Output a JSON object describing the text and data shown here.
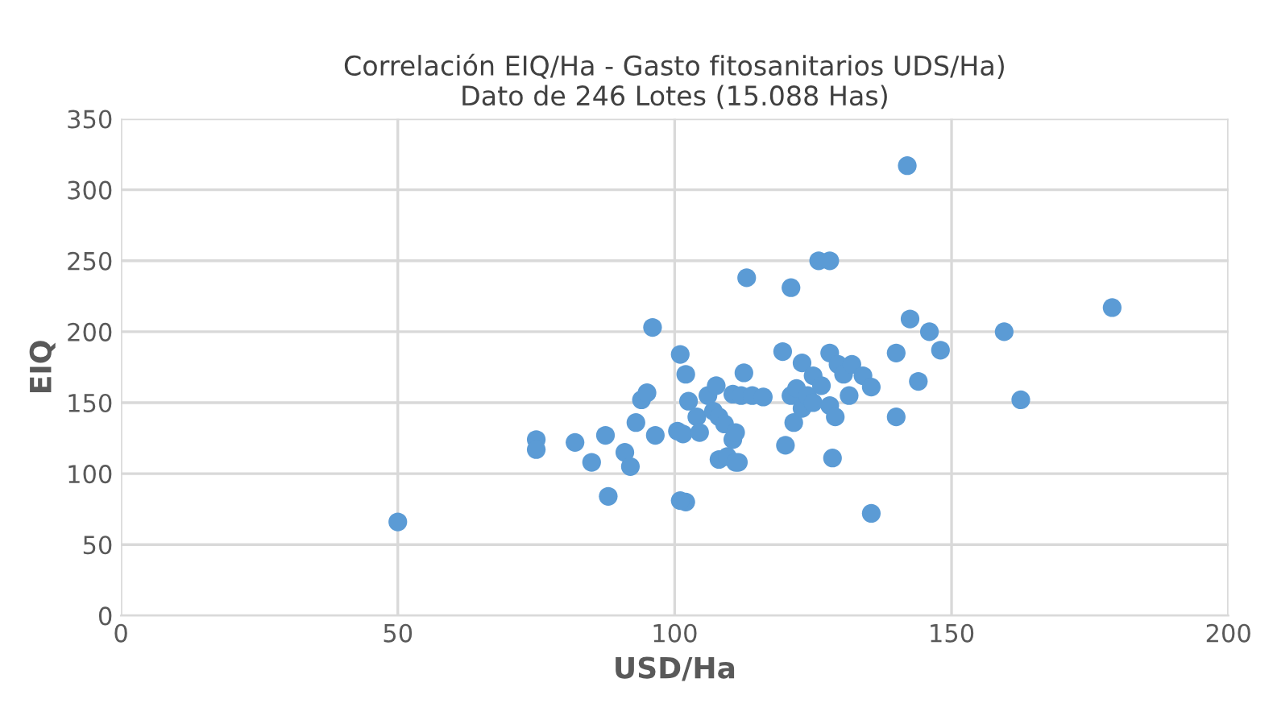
{
  "chart_data": {
    "type": "scatter",
    "title": "Correlación EIQ/Ha - Gasto fitosanitarios UDS/Ha)\nDato de 246 Lotes (15.088 Has)",
    "xlabel": "USD/Ha",
    "ylabel": "EIQ",
    "x": [
      50,
      75,
      75,
      82,
      85,
      87.5,
      88,
      91,
      92,
      93,
      94,
      95,
      96,
      96.5,
      100.5,
      101,
      101.5,
      102,
      102,
      102.5,
      104,
      104.5,
      106,
      107,
      107.5,
      108,
      108,
      109,
      109.5,
      110.5,
      110.5,
      111,
      111.5,
      112,
      112.5,
      113,
      114,
      116,
      119.5,
      120,
      121,
      121,
      121.5,
      122,
      123,
      123,
      124,
      125,
      125,
      126,
      126.5,
      128,
      128,
      128,
      128.5,
      129,
      129.5,
      130.5,
      131.5,
      132,
      134,
      135.5,
      135.5,
      140,
      140,
      142,
      142.5,
      144,
      146,
      148,
      159.5,
      162.5,
      179,
      101,
      111
    ],
    "series": [
      {
        "color": "#5b9bd5",
        "values": [
          66,
          124,
          117,
          122,
          108,
          127,
          84,
          115,
          105,
          136,
          152,
          157,
          203,
          127,
          130,
          184,
          128,
          170,
          80,
          151,
          140,
          129,
          155,
          144,
          162,
          140,
          110,
          135,
          112,
          124,
          156,
          129,
          108,
          155,
          171,
          238,
          155,
          154,
          186,
          120,
          231,
          155,
          136,
          160,
          146,
          178,
          155,
          150,
          169,
          250,
          162,
          250,
          148,
          185,
          111,
          140,
          177,
          170,
          155,
          177,
          169,
          161,
          72,
          140,
          185,
          317,
          209,
          165,
          200,
          187,
          200,
          152,
          217,
          81,
          108
        ]
      }
    ],
    "xlim": [
      0,
      200
    ],
    "xticks": [
      0,
      50,
      100,
      150,
      200
    ],
    "ylim": [
      0,
      350
    ],
    "yticks": [
      0,
      50,
      100,
      150,
      200,
      250,
      300,
      350
    ],
    "grid": true,
    "marker": "circle"
  }
}
